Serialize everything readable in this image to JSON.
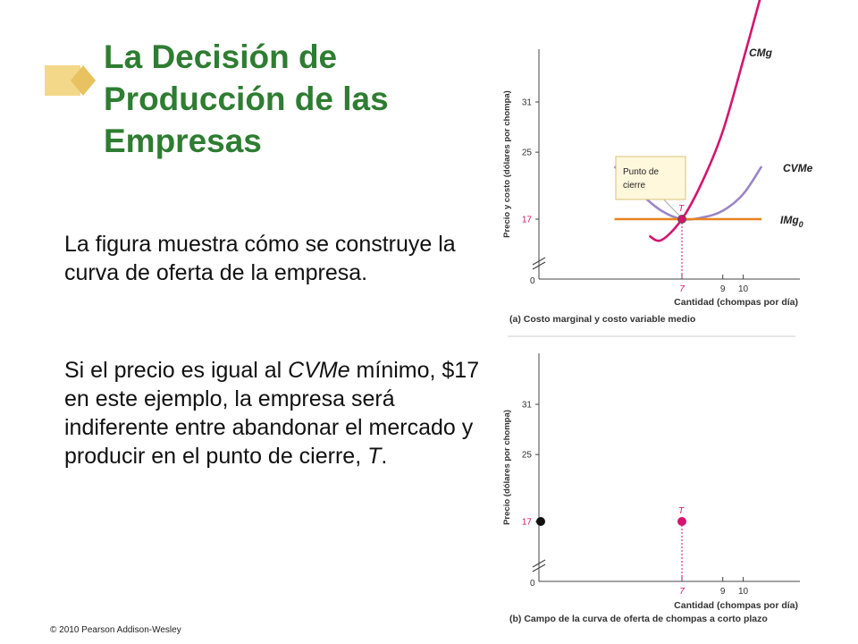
{
  "slide": {
    "title": "La Decisión de Producción de las Empresas",
    "paragraph1": "La figura muestra cómo se construye la curva de oferta de la empresa.",
    "paragraph2_parts": [
      "Si el precio es igual al ",
      "CVMe",
      " mínimo, $17 en este ejemplo, la empresa será indiferente entre abandonar el mercado y producir en el punto de cierre, ",
      "T",
      "."
    ],
    "copyright": "© 2010 Pearson Addison-Wesley",
    "accent_color": "#2e7d32",
    "deco_color": "#f3d88a"
  },
  "chart_data": [
    {
      "type": "line",
      "panel_label": "(a) Costo marginal y costo variable medio",
      "xlabel": "Cantidad (chompas por día)",
      "ylabel": "Precio y costo (dólares por chompa)",
      "x_ticks": [
        "7",
        "9",
        "10"
      ],
      "y_ticks": [
        "17",
        "25",
        "31"
      ],
      "origin_label": "0",
      "series": [
        {
          "name": "CMg",
          "color": "#d4146e",
          "x": [
            5.4,
            6,
            7,
            8,
            9,
            10,
            10.9
          ],
          "y": [
            15,
            14.5,
            17,
            21.5,
            27.5,
            36,
            44
          ]
        },
        {
          "name": "CVMe",
          "color": "#9b85c4",
          "x": [
            3.7,
            5,
            6,
            7,
            8,
            9,
            10,
            10.9
          ],
          "y": [
            23.3,
            20,
            18,
            17,
            17.2,
            18,
            20,
            23.3
          ]
        },
        {
          "name": "IMg0",
          "name_base": "IMg",
          "name_sub": "0",
          "color": "#e8831f",
          "x": [
            3.7,
            10.9
          ],
          "y": [
            17,
            17
          ]
        }
      ],
      "points": [
        {
          "label": "T",
          "x": 7,
          "y": 17
        }
      ],
      "callout": "Punto de cierre"
    },
    {
      "type": "scatter",
      "panel_label": "(b) Campo de la curva de oferta de chompas a corto plazo",
      "xlabel": "Cantidad (chompas por día)",
      "ylabel": "Precio (dólares por chompa)",
      "x_ticks": [
        "7",
        "9",
        "10"
      ],
      "y_ticks": [
        "17",
        "25",
        "31"
      ],
      "origin_label": "0",
      "points": [
        {
          "label": "",
          "x": 0,
          "y": 17,
          "color": "#111111"
        },
        {
          "label": "T",
          "x": 7,
          "y": 17,
          "color": "#d4146e"
        }
      ]
    }
  ]
}
